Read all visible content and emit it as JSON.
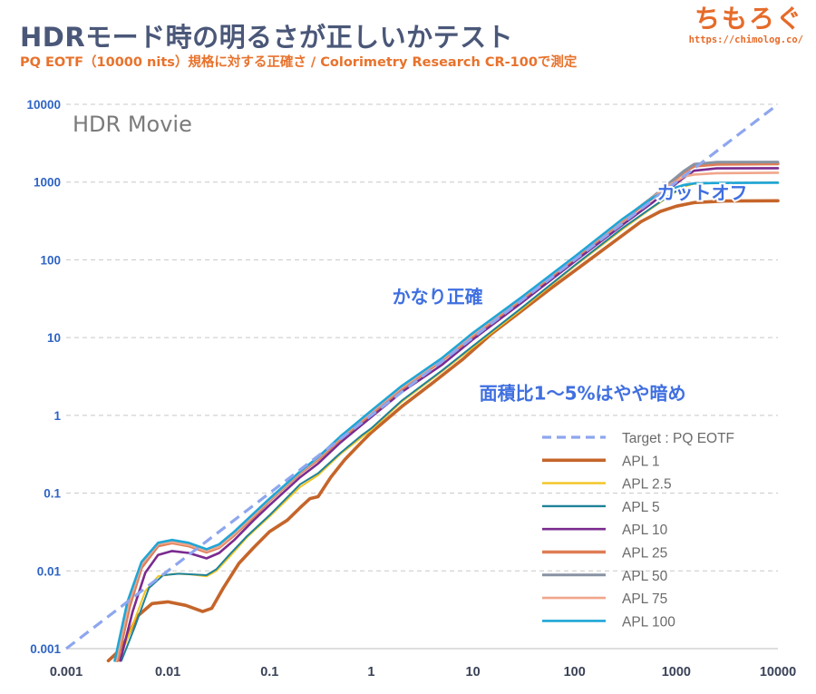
{
  "header": {
    "title": "HDRモード時の明るさが正しいかテスト",
    "subtitle": "PQ EOTF（10000 nits）規格に対する正確さ / Colorimetry Research CR-100で測定"
  },
  "brand": {
    "name": "ちもろぐ",
    "url": "https://chimolog.co/"
  },
  "chart_data": {
    "type": "line",
    "scale": "log-log",
    "mode_label": "HDR Movie",
    "x_ticks": [
      "0.001",
      "0.01",
      "0.1",
      "1",
      "10",
      "100",
      "1000",
      "10000"
    ],
    "y_ticks": [
      "0.001",
      "0.01",
      "0.1",
      "1",
      "10",
      "100",
      "1000",
      "10000"
    ],
    "xlim": [
      0.001,
      10000
    ],
    "ylim": [
      0.001,
      10000
    ],
    "grid": true,
    "legend_position": "bottom-right",
    "annotations": [
      {
        "id": "cutoff",
        "text": "カットオフ",
        "x": 1800,
        "y": 600
      },
      {
        "id": "accurate",
        "text": "かなり正確",
        "x": 4.5,
        "y": 28
      },
      {
        "id": "dark",
        "text": "面積比1～5%はやや暗め",
        "x": 120,
        "y": 1.6
      }
    ],
    "series": [
      {
        "name": "Target : PQ EOTF",
        "color": "#8ea6ee",
        "dashed": true,
        "points": [
          [
            0.001,
            0.001
          ],
          [
            10000,
            10000
          ]
        ]
      },
      {
        "name": "APL 1",
        "color": "#c5652a",
        "width": 3.6,
        "points": [
          [
            0.0026,
            0.0007
          ],
          [
            0.0035,
            0.001
          ],
          [
            0.005,
            0.0026
          ],
          [
            0.007,
            0.0038
          ],
          [
            0.01,
            0.004
          ],
          [
            0.015,
            0.0036
          ],
          [
            0.022,
            0.003
          ],
          [
            0.027,
            0.0033
          ],
          [
            0.035,
            0.006
          ],
          [
            0.05,
            0.0125
          ],
          [
            0.07,
            0.02
          ],
          [
            0.1,
            0.032
          ],
          [
            0.15,
            0.045
          ],
          [
            0.2,
            0.065
          ],
          [
            0.25,
            0.085
          ],
          [
            0.3,
            0.09
          ],
          [
            0.4,
            0.16
          ],
          [
            0.55,
            0.27
          ],
          [
            0.8,
            0.45
          ],
          [
            1,
            0.6
          ],
          [
            2,
            1.3
          ],
          [
            4,
            2.6
          ],
          [
            8,
            5.3
          ],
          [
            15,
            11
          ],
          [
            30,
            22
          ],
          [
            60,
            44
          ],
          [
            120,
            86
          ],
          [
            250,
            175
          ],
          [
            450,
            310
          ],
          [
            700,
            420
          ],
          [
            1000,
            490
          ],
          [
            1500,
            545
          ],
          [
            3000,
            570
          ],
          [
            10000,
            575
          ]
        ]
      },
      {
        "name": "APL 2.5",
        "color": "#f2c41f",
        "width": 2,
        "points": [
          [
            0.0033,
            0.0007
          ],
          [
            0.0045,
            0.002
          ],
          [
            0.006,
            0.0055
          ],
          [
            0.008,
            0.0085
          ],
          [
            0.012,
            0.0092
          ],
          [
            0.017,
            0.009
          ],
          [
            0.024,
            0.0085
          ],
          [
            0.03,
            0.01
          ],
          [
            0.04,
            0.015
          ],
          [
            0.06,
            0.027
          ],
          [
            0.1,
            0.05
          ],
          [
            0.2,
            0.12
          ],
          [
            0.3,
            0.17
          ],
          [
            0.5,
            0.32
          ],
          [
            0.8,
            0.52
          ],
          [
            1,
            0.65
          ],
          [
            2,
            1.5
          ],
          [
            5,
            3.7
          ],
          [
            10,
            7.5
          ],
          [
            30,
            23
          ],
          [
            100,
            83
          ],
          [
            300,
            250
          ],
          [
            600,
            480
          ],
          [
            900,
            690
          ],
          [
            1200,
            880
          ],
          [
            1500,
            950
          ],
          [
            2500,
            975
          ],
          [
            10000,
            985
          ]
        ]
      },
      {
        "name": "APL 5",
        "color": "#1f8299",
        "width": 2,
        "points": [
          [
            0.0035,
            0.0007
          ],
          [
            0.0048,
            0.002
          ],
          [
            0.0065,
            0.006
          ],
          [
            0.009,
            0.0088
          ],
          [
            0.013,
            0.0092
          ],
          [
            0.018,
            0.009
          ],
          [
            0.024,
            0.0088
          ],
          [
            0.03,
            0.0105
          ],
          [
            0.04,
            0.016
          ],
          [
            0.06,
            0.028
          ],
          [
            0.1,
            0.052
          ],
          [
            0.2,
            0.13
          ],
          [
            0.3,
            0.18
          ],
          [
            0.5,
            0.33
          ],
          [
            0.8,
            0.55
          ],
          [
            1,
            0.68
          ],
          [
            2,
            1.55
          ],
          [
            5,
            3.8
          ],
          [
            10,
            7.8
          ],
          [
            30,
            24
          ],
          [
            100,
            85
          ],
          [
            300,
            260
          ],
          [
            600,
            490
          ],
          [
            900,
            700
          ],
          [
            1200,
            900
          ],
          [
            1500,
            960
          ],
          [
            2500,
            980
          ],
          [
            10000,
            990
          ]
        ]
      },
      {
        "name": "APL 10",
        "color": "#7a2b8f",
        "width": 2.6,
        "points": [
          [
            0.0034,
            0.0007
          ],
          [
            0.0045,
            0.003
          ],
          [
            0.006,
            0.0095
          ],
          [
            0.008,
            0.016
          ],
          [
            0.011,
            0.018
          ],
          [
            0.016,
            0.017
          ],
          [
            0.024,
            0.0145
          ],
          [
            0.032,
            0.017
          ],
          [
            0.045,
            0.025
          ],
          [
            0.07,
            0.045
          ],
          [
            0.1,
            0.07
          ],
          [
            0.2,
            0.16
          ],
          [
            0.3,
            0.24
          ],
          [
            0.5,
            0.45
          ],
          [
            1,
            0.95
          ],
          [
            2,
            2
          ],
          [
            5,
            4.5
          ],
          [
            10,
            9.5
          ],
          [
            30,
            28
          ],
          [
            100,
            95
          ],
          [
            300,
            285
          ],
          [
            600,
            560
          ],
          [
            900,
            860
          ],
          [
            1200,
            1150
          ],
          [
            1500,
            1400
          ],
          [
            2500,
            1500
          ],
          [
            10000,
            1510
          ]
        ]
      },
      {
        "name": "APL 25",
        "color": "#e07d55",
        "width": 3.4,
        "points": [
          [
            0.0032,
            0.0007
          ],
          [
            0.0042,
            0.0035
          ],
          [
            0.0055,
            0.011
          ],
          [
            0.008,
            0.021
          ],
          [
            0.011,
            0.023
          ],
          [
            0.016,
            0.021
          ],
          [
            0.024,
            0.0175
          ],
          [
            0.032,
            0.02
          ],
          [
            0.045,
            0.029
          ],
          [
            0.07,
            0.05
          ],
          [
            0.1,
            0.08
          ],
          [
            0.2,
            0.18
          ],
          [
            0.3,
            0.27
          ],
          [
            0.5,
            0.5
          ],
          [
            1,
            1.05
          ],
          [
            2,
            2.2
          ],
          [
            5,
            5.1
          ],
          [
            10,
            10.5
          ],
          [
            30,
            31
          ],
          [
            100,
            105
          ],
          [
            300,
            320
          ],
          [
            600,
            640
          ],
          [
            900,
            1000
          ],
          [
            1200,
            1350
          ],
          [
            1500,
            1600
          ],
          [
            2500,
            1700
          ],
          [
            10000,
            1720
          ]
        ]
      },
      {
        "name": "APL 50",
        "color": "#8893a3",
        "width": 3,
        "points": [
          [
            0.0031,
            0.0007
          ],
          [
            0.0041,
            0.0037
          ],
          [
            0.0055,
            0.012
          ],
          [
            0.008,
            0.022
          ],
          [
            0.011,
            0.024
          ],
          [
            0.016,
            0.022
          ],
          [
            0.024,
            0.018
          ],
          [
            0.032,
            0.021
          ],
          [
            0.045,
            0.03
          ],
          [
            0.07,
            0.052
          ],
          [
            0.1,
            0.082
          ],
          [
            0.2,
            0.185
          ],
          [
            0.3,
            0.28
          ],
          [
            0.5,
            0.52
          ],
          [
            1,
            1.1
          ],
          [
            2,
            2.3
          ],
          [
            5,
            5.3
          ],
          [
            10,
            11
          ],
          [
            30,
            32
          ],
          [
            100,
            108
          ],
          [
            300,
            330
          ],
          [
            600,
            660
          ],
          [
            900,
            1030
          ],
          [
            1200,
            1400
          ],
          [
            1500,
            1700
          ],
          [
            2500,
            1800
          ],
          [
            10000,
            1810
          ]
        ]
      },
      {
        "name": "APL 75",
        "color": "#f0a68a",
        "width": 2.6,
        "points": [
          [
            0.0031,
            0.0007
          ],
          [
            0.0041,
            0.0037
          ],
          [
            0.0055,
            0.012
          ],
          [
            0.008,
            0.022
          ],
          [
            0.011,
            0.0235
          ],
          [
            0.016,
            0.0215
          ],
          [
            0.024,
            0.018
          ],
          [
            0.032,
            0.0205
          ],
          [
            0.045,
            0.03
          ],
          [
            0.07,
            0.052
          ],
          [
            0.1,
            0.082
          ],
          [
            0.2,
            0.185
          ],
          [
            0.3,
            0.28
          ],
          [
            0.5,
            0.52
          ],
          [
            1,
            1.1
          ],
          [
            2,
            2.3
          ],
          [
            5,
            5.3
          ],
          [
            10,
            11
          ],
          [
            30,
            32
          ],
          [
            100,
            108
          ],
          [
            300,
            330
          ],
          [
            600,
            650
          ],
          [
            900,
            950
          ],
          [
            1200,
            1180
          ],
          [
            1500,
            1250
          ],
          [
            2500,
            1300
          ],
          [
            10000,
            1320
          ]
        ]
      },
      {
        "name": "APL 100",
        "color": "#1fa6d6",
        "width": 2.6,
        "points": [
          [
            0.003,
            0.0007
          ],
          [
            0.004,
            0.004
          ],
          [
            0.0055,
            0.013
          ],
          [
            0.008,
            0.023
          ],
          [
            0.011,
            0.025
          ],
          [
            0.016,
            0.023
          ],
          [
            0.024,
            0.019
          ],
          [
            0.032,
            0.022
          ],
          [
            0.045,
            0.032
          ],
          [
            0.07,
            0.055
          ],
          [
            0.1,
            0.085
          ],
          [
            0.2,
            0.19
          ],
          [
            0.3,
            0.29
          ],
          [
            0.5,
            0.54
          ],
          [
            1,
            1.15
          ],
          [
            2,
            2.4
          ],
          [
            5,
            5.5
          ],
          [
            10,
            11.5
          ],
          [
            30,
            33
          ],
          [
            100,
            110
          ],
          [
            300,
            340
          ],
          [
            600,
            640
          ],
          [
            900,
            820
          ],
          [
            1200,
            920
          ],
          [
            1500,
            960
          ],
          [
            2500,
            975
          ],
          [
            10000,
            980
          ]
        ]
      }
    ]
  }
}
